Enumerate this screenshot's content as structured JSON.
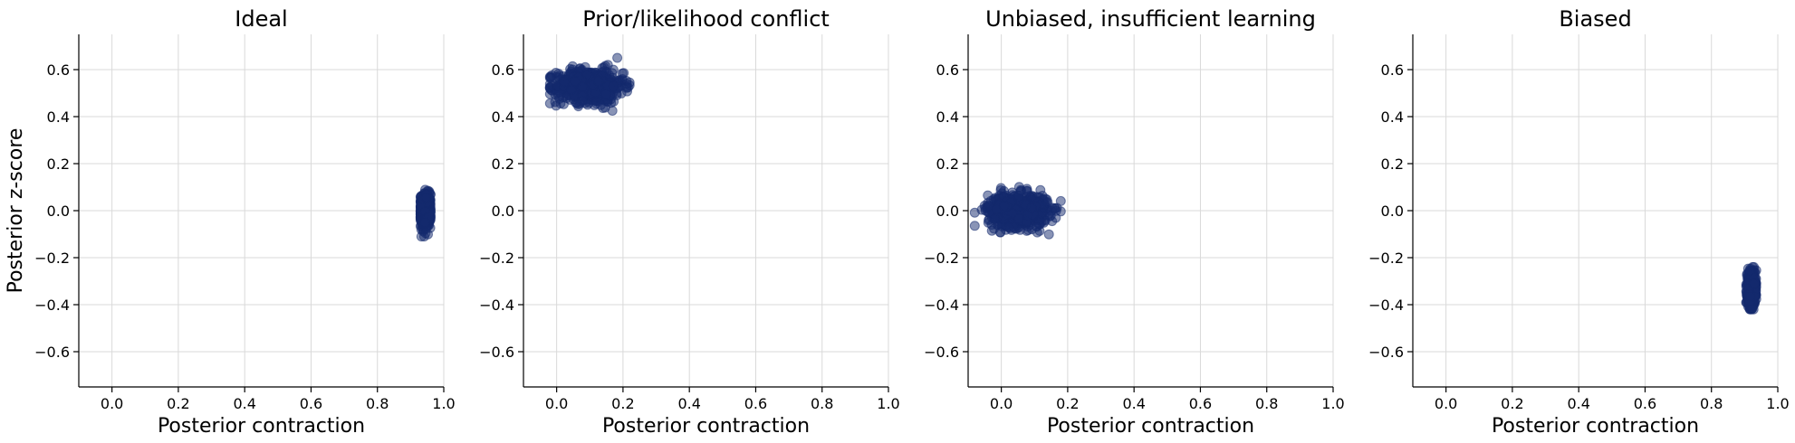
{
  "chart_data": [
    {
      "type": "scatter",
      "title": "Ideal",
      "xlabel": "Posterior contraction",
      "ylabel": "Posterior z-score",
      "xlim": [
        -0.1,
        1.0
      ],
      "ylim": [
        -0.75,
        0.75
      ],
      "xticks": [
        "0.0",
        "0.2",
        "0.4",
        "0.6",
        "0.8",
        "1.0"
      ],
      "yticks": [
        "0.6",
        "0.4",
        "0.2",
        "0.0",
        "−0.2",
        "−0.4",
        "−0.6"
      ],
      "grid": true,
      "color": "#142a6e",
      "cluster": {
        "x_center": 0.945,
        "x_spread": 0.008,
        "y_center": 0.0,
        "y_spread": 0.035,
        "x_range": [
          0.93,
          0.96
        ],
        "y_range": [
          -0.11,
          0.1
        ]
      }
    },
    {
      "type": "scatter",
      "title": "Prior/likelihood conflict",
      "xlabel": "Posterior contraction",
      "ylabel": "",
      "xlim": [
        -0.1,
        1.0
      ],
      "ylim": [
        -0.75,
        0.75
      ],
      "xticks": [
        "0.0",
        "0.2",
        "0.4",
        "0.6",
        "0.8",
        "1.0"
      ],
      "yticks": [
        "0.6",
        "0.4",
        "0.2",
        "0.0",
        "−0.2",
        "−0.4",
        "−0.6"
      ],
      "grid": true,
      "color": "#142a6e",
      "cluster": {
        "x_center": 0.1,
        "x_spread": 0.05,
        "y_center": 0.53,
        "y_spread": 0.035,
        "x_range": [
          -0.02,
          0.22
        ],
        "y_range": [
          0.42,
          0.65
        ]
      }
    },
    {
      "type": "scatter",
      "title": "Unbiased, insufficient learning",
      "xlabel": "Posterior contraction",
      "ylabel": "",
      "xlim": [
        -0.1,
        1.0
      ],
      "ylim": [
        -0.75,
        0.75
      ],
      "xticks": [
        "0.0",
        "0.2",
        "0.4",
        "0.6",
        "0.8",
        "1.0"
      ],
      "yticks": [
        "0.6",
        "0.4",
        "0.2",
        "0.0",
        "−0.2",
        "−0.4",
        "−0.6"
      ],
      "grid": true,
      "color": "#142a6e",
      "cluster": {
        "x_center": 0.05,
        "x_spread": 0.045,
        "y_center": 0.0,
        "y_spread": 0.035,
        "x_range": [
          -0.08,
          0.21
        ],
        "y_range": [
          -0.11,
          0.13
        ]
      }
    },
    {
      "type": "scatter",
      "title": "Biased",
      "xlabel": "Posterior contraction",
      "ylabel": "",
      "xlim": [
        -0.1,
        1.0
      ],
      "ylim": [
        -0.75,
        0.75
      ],
      "xticks": [
        "0.0",
        "0.2",
        "0.4",
        "0.6",
        "0.8",
        "1.0"
      ],
      "yticks": [
        "0.6",
        "0.4",
        "0.2",
        "0.0",
        "−0.2",
        "−0.4",
        "−0.6"
      ],
      "grid": true,
      "color": "#142a6e",
      "cluster": {
        "x_center": 0.92,
        "x_spread": 0.006,
        "y_center": -0.33,
        "y_spread": 0.035,
        "x_range": [
          0.905,
          0.935
        ],
        "y_range": [
          -0.42,
          -0.24
        ]
      }
    }
  ]
}
